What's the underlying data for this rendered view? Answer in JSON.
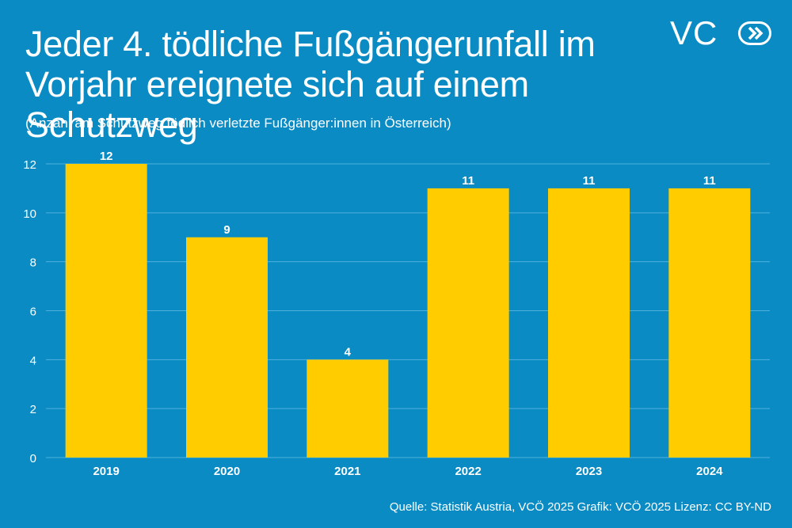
{
  "header": {
    "title": "Jeder 4. tödliche Fußgängerunfall im Vorjahr ereignete sich auf einem Schutzweg",
    "subtitle": "(Anzahl am Schutzweg tödlich verletzte Fußgänger:innen in Österreich)"
  },
  "logo": {
    "text": "VC",
    "icon": "double-chevron-circle-icon"
  },
  "footer": {
    "source": "Quelle: Statistik Austria, VCÖ 2025 Grafik: VCÖ 2025 Lizenz: CC BY-ND"
  },
  "colors": {
    "background": "#0a8bc4",
    "bar": "#ffcc00",
    "text": "#ffffff",
    "gridline": "#4fb0dc"
  },
  "chart_data": {
    "type": "bar",
    "title": "Jeder 4. tödliche Fußgängerunfall im Vorjahr ereignete sich auf einem Schutzweg",
    "subtitle": "(Anzahl am Schutzweg tödlich verletzte Fußgänger:innen in Österreich)",
    "categories": [
      "2019",
      "2020",
      "2021",
      "2022",
      "2023",
      "2024"
    ],
    "values": [
      12,
      9,
      4,
      11,
      11,
      11
    ],
    "value_labels": [
      "12",
      "9",
      "4",
      "11",
      "11",
      "11"
    ],
    "xlabel": "",
    "ylabel": "",
    "ylim": [
      0,
      12
    ],
    "yticks": [
      0,
      2,
      4,
      6,
      8,
      10,
      12
    ],
    "ytick_labels": [
      "0",
      "2",
      "4",
      "6",
      "8",
      "10",
      "12"
    ],
    "grid": true,
    "legend": "none"
  }
}
